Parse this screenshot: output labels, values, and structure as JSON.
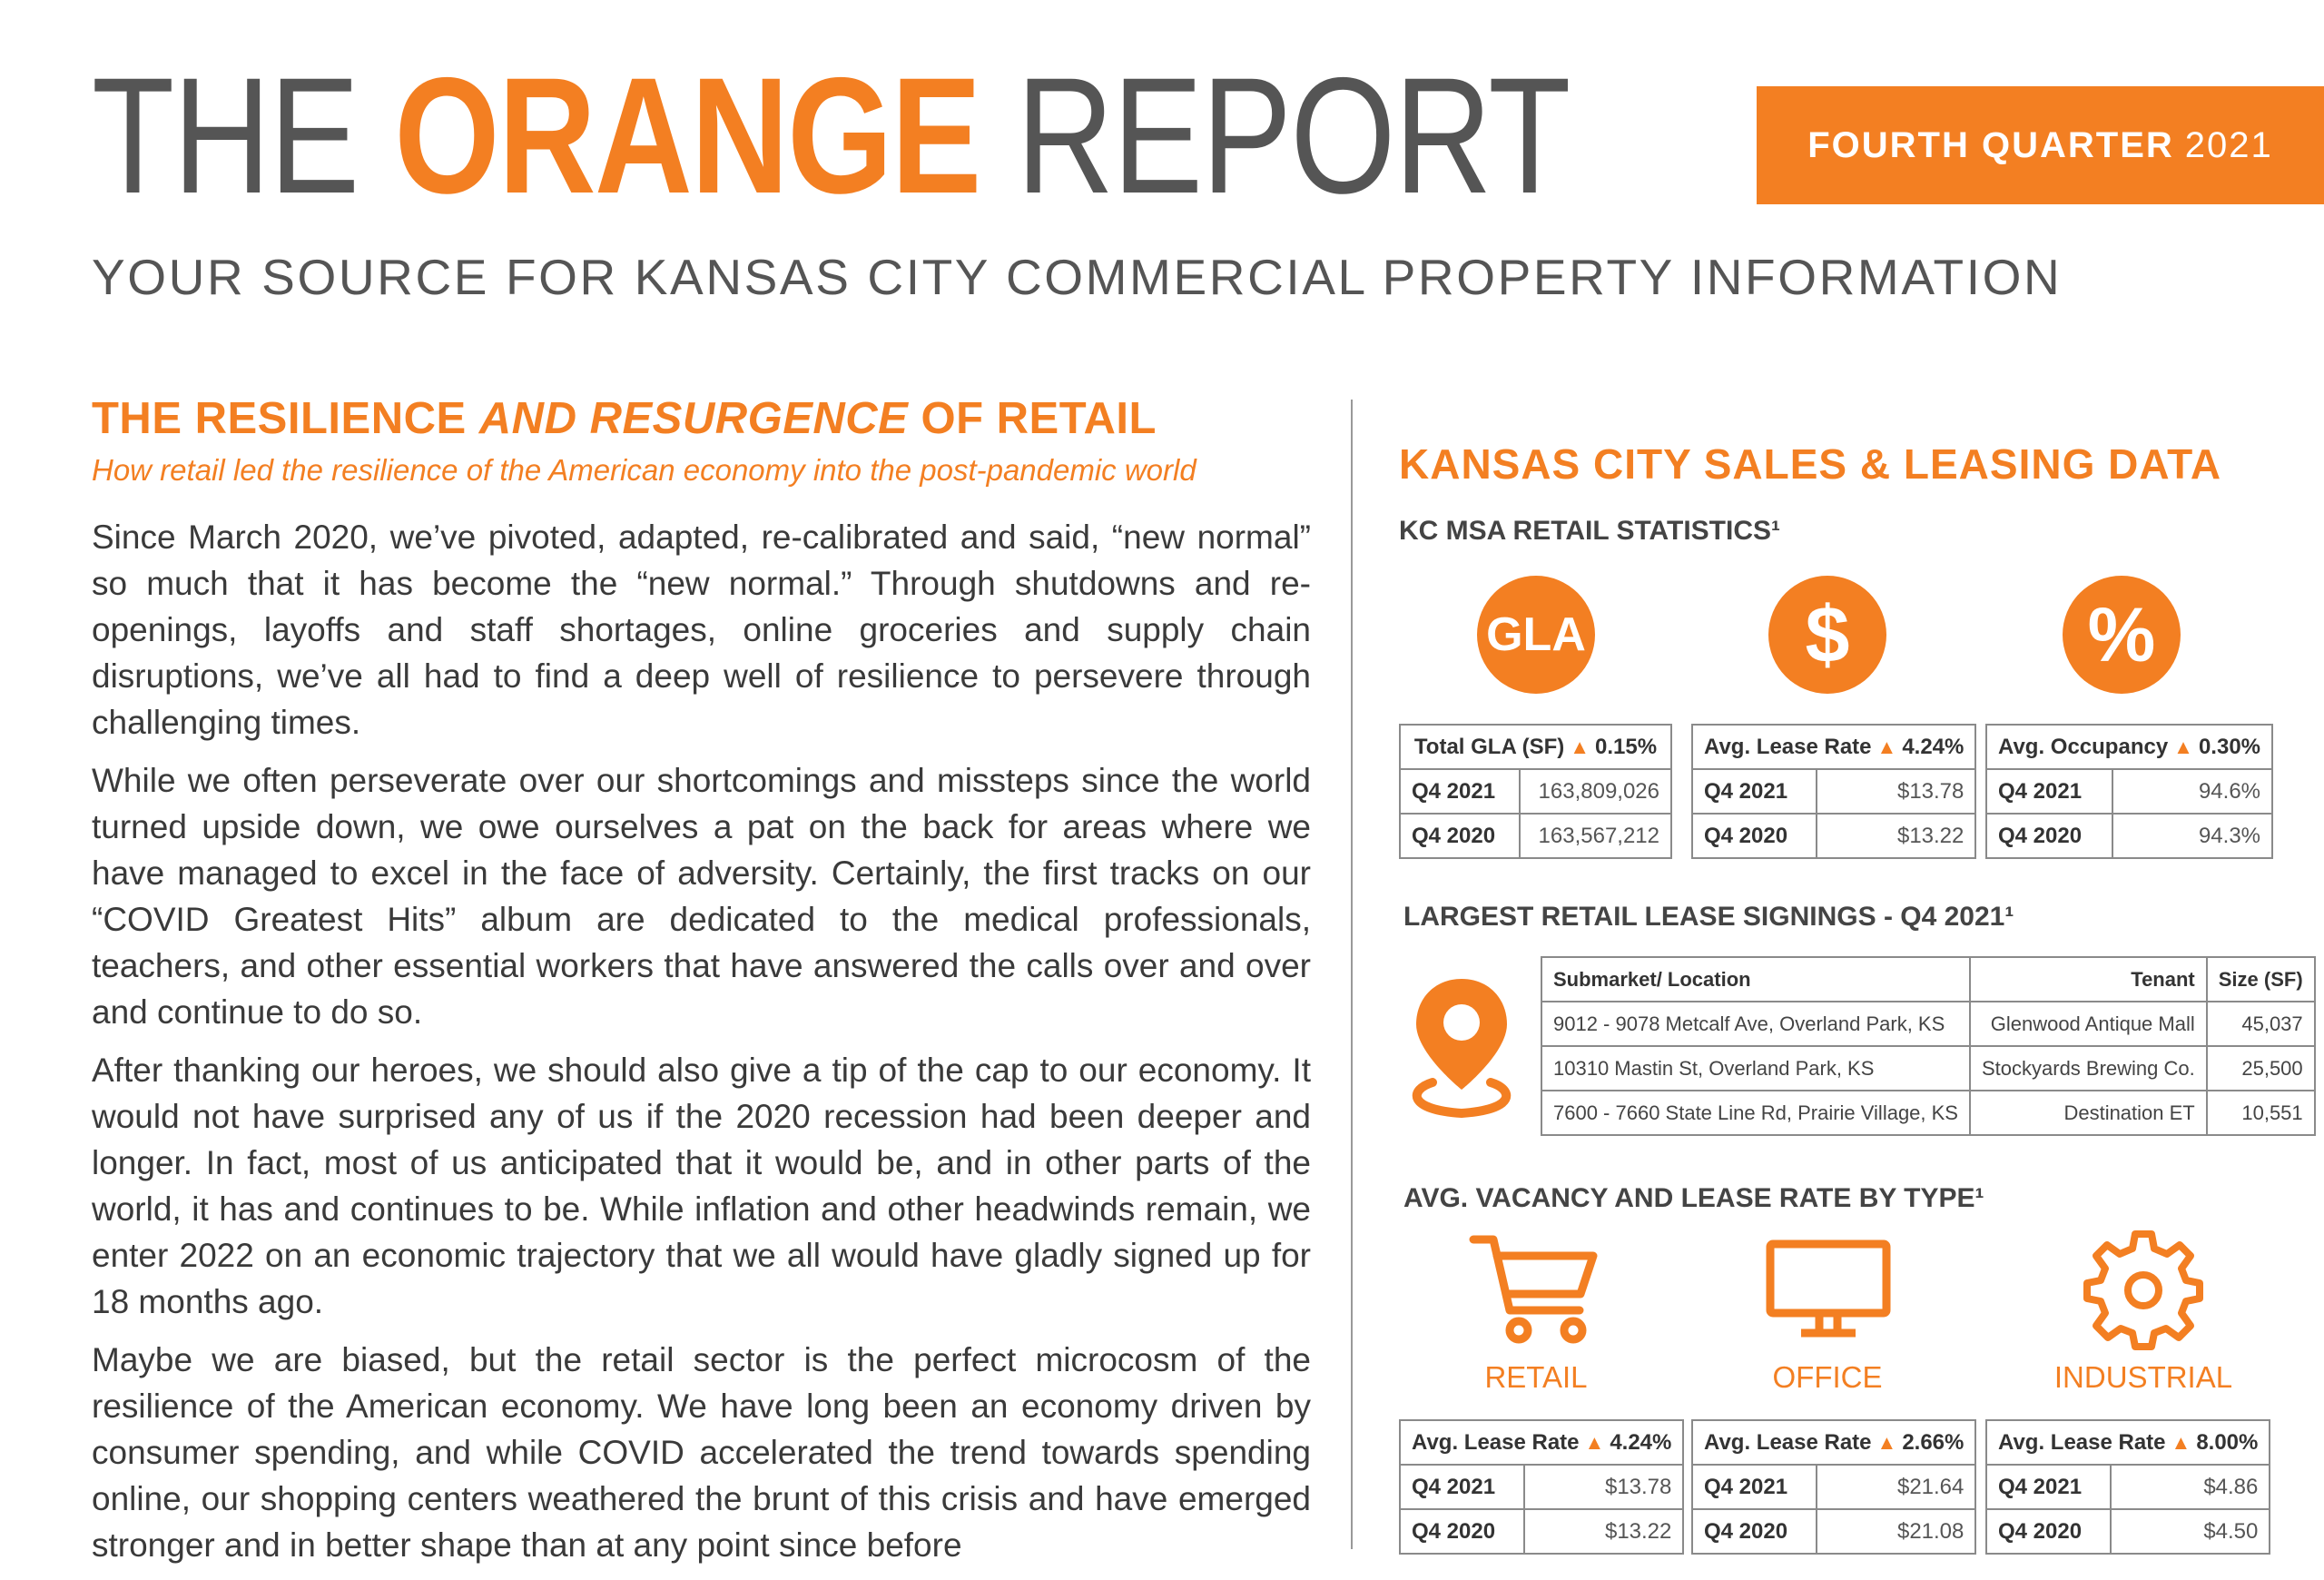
{
  "header": {
    "title": [
      "THE",
      "ORANGE",
      "REPORT"
    ],
    "quarter": [
      "FOURTH QUARTER",
      "2021"
    ],
    "tagline": "YOUR SOURCE FOR KANSAS CITY COMMERCIAL PROPERTY INFORMATION"
  },
  "article": {
    "heading": [
      "THE RESILIENCE",
      "AND RESURGENCE",
      "OF RETAIL"
    ],
    "subheading": "How retail led the resilience of the American economy into the post-pandemic world",
    "paragraphs": [
      "Since March 2020, we’ve pivoted, adapted, re-calibrated and said, “new normal” so much that it has become the “new normal.” Through shutdowns and re-openings, layoffs and staff shortages, online groceries and supply chain disruptions, we’ve all had to find a deep well of resilience to persevere through challenging times.",
      "While we often perseverate over our shortcomings and missteps since the world turned upside down, we owe ourselves a pat on the back for areas where we have managed to excel in the face of adversity. Certainly, the first tracks on our “COVID Greatest Hits” album are dedicated to the medical professionals, teachers, and other essential workers that have answered the calls over and over and continue to do so.",
      "After thanking our heroes, we should also give a tip of the cap to our economy. It would not have surprised any of us if the 2020 recession had been deeper and longer. In fact, most of us anticipated that it would be, and in other parts of the world, it has and continues to be. While inflation and other headwinds remain, we enter 2022 on an economic trajectory that we all would have gladly signed up for 18 months ago.",
      "Maybe we are biased, but the retail sector is the perfect microcosm of the resilience of the American economy. We have long been an economy driven by consumer spending, and while COVID accelerated the trend towards spending online, our shopping centers weathered the brunt of this crisis and have emerged stronger and in better shape than at any point since before"
    ]
  },
  "sidebar": {
    "title": "KANSAS CITY SALES & LEASING DATA",
    "retail_stats": {
      "title": "KC MSA RETAIL STATISTICS¹",
      "icons": [
        "GLA",
        "$",
        "%"
      ],
      "tables": [
        {
          "label": "Total GLA (SF)",
          "change": "0.15%",
          "rows": [
            [
              "Q4 2021",
              "163,809,026"
            ],
            [
              "Q4 2020",
              "163,567,212"
            ]
          ]
        },
        {
          "label": "Avg. Lease Rate",
          "change": "4.24%",
          "rows": [
            [
              "Q4 2021",
              "$13.78"
            ],
            [
              "Q4 2020",
              "$13.22"
            ]
          ]
        },
        {
          "label": "Avg. Occupancy",
          "change": "0.30%",
          "rows": [
            [
              "Q4 2021",
              "94.6%"
            ],
            [
              "Q4 2020",
              "94.3%"
            ]
          ]
        }
      ]
    },
    "lease_signings": {
      "title": "LARGEST RETAIL LEASE SIGNINGS - Q4 2021¹",
      "columns": [
        "Submarket/ Location",
        "Tenant",
        "Size (SF)"
      ],
      "rows": [
        [
          "9012 - 9078 Metcalf Ave, Overland Park, KS",
          "Glenwood Antique Mall",
          "45,037"
        ],
        [
          "10310 Mastin St, Overland Park, KS",
          "Stockyards Brewing Co.",
          "25,500"
        ],
        [
          "7600 - 7660 State Line Rd, Prairie Village, KS",
          "Destination ET",
          "10,551"
        ]
      ]
    },
    "by_type": {
      "title": "AVG. VACANCY AND LEASE RATE BY TYPE¹",
      "types": [
        {
          "name": "RETAIL",
          "label": "Avg. Lease Rate",
          "change": "4.24%",
          "rows": [
            [
              "Q4 2021",
              "$13.78"
            ],
            [
              "Q4 2020",
              "$13.22"
            ]
          ]
        },
        {
          "name": "OFFICE",
          "label": "Avg. Lease Rate",
          "change": "2.66%",
          "rows": [
            [
              "Q4 2021",
              "$21.64"
            ],
            [
              "Q4 2020",
              "$21.08"
            ]
          ]
        },
        {
          "name": "INDUSTRIAL",
          "label": "Avg. Lease Rate",
          "change": "8.00%",
          "rows": [
            [
              "Q4 2021",
              "$4.86"
            ],
            [
              "Q4 2020",
              "$4.50"
            ]
          ]
        }
      ]
    }
  }
}
